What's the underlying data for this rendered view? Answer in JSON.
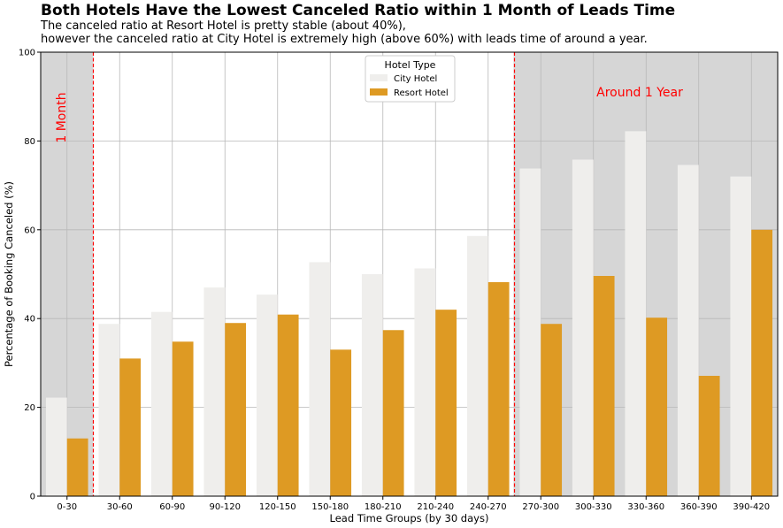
{
  "chart_data": {
    "type": "bar",
    "title": "Both Hotels Have the Lowest Canceled Ratio within 1 Month of Leads Time",
    "subtitle": [
      "The canceled ratio at Resort Hotel is pretty stable (about 40%),",
      "however the canceled ratio at City Hotel is extremely high (above 60%) with leads time of around a year."
    ],
    "xlabel": "Lead Time Groups (by 30 days)",
    "ylabel": "Percentage of Booking Canceled (%)",
    "ylim": [
      0,
      100
    ],
    "yticks": [
      0,
      20,
      40,
      60,
      80,
      100
    ],
    "grid": true,
    "categories": [
      "0-30",
      "30-60",
      "60-90",
      "90-120",
      "120-150",
      "150-180",
      "180-210",
      "210-240",
      "240-270",
      "270-300",
      "300-330",
      "330-360",
      "360-390",
      "390-420"
    ],
    "series": [
      {
        "name": "City Hotel",
        "color": "#efeeec",
        "values": [
          22.2,
          38.8,
          41.5,
          47.0,
          45.4,
          52.7,
          50.0,
          51.3,
          58.6,
          73.8,
          75.8,
          82.2,
          74.6,
          72.0
        ]
      },
      {
        "name": "Resort Hotel",
        "color": "#de9a23",
        "values": [
          13.0,
          31.0,
          34.8,
          39.0,
          40.9,
          33.0,
          37.4,
          42.0,
          48.2,
          38.8,
          49.6,
          40.2,
          27.1,
          60.0
        ]
      }
    ],
    "legend": {
      "title": "Hotel Type",
      "position": "top-center"
    },
    "shaded_regions": [
      {
        "from_category": "0-30",
        "to_category": "0-30",
        "color": "#d6d6d6"
      },
      {
        "from_category": "270-300",
        "to_category": "390-420",
        "color": "#d6d6d6"
      }
    ],
    "reference_lines": [
      {
        "between": [
          "0-30",
          "30-60"
        ],
        "color": "#ff0000",
        "style": "dashed"
      },
      {
        "between": [
          "240-270",
          "270-300"
        ],
        "color": "#ff0000",
        "style": "dashed"
      }
    ],
    "annotations": [
      {
        "text": "1 Month",
        "color": "#ff0000",
        "rotated": true
      },
      {
        "text": "Around 1 Year",
        "color": "#ff0000",
        "rotated": false
      }
    ]
  }
}
